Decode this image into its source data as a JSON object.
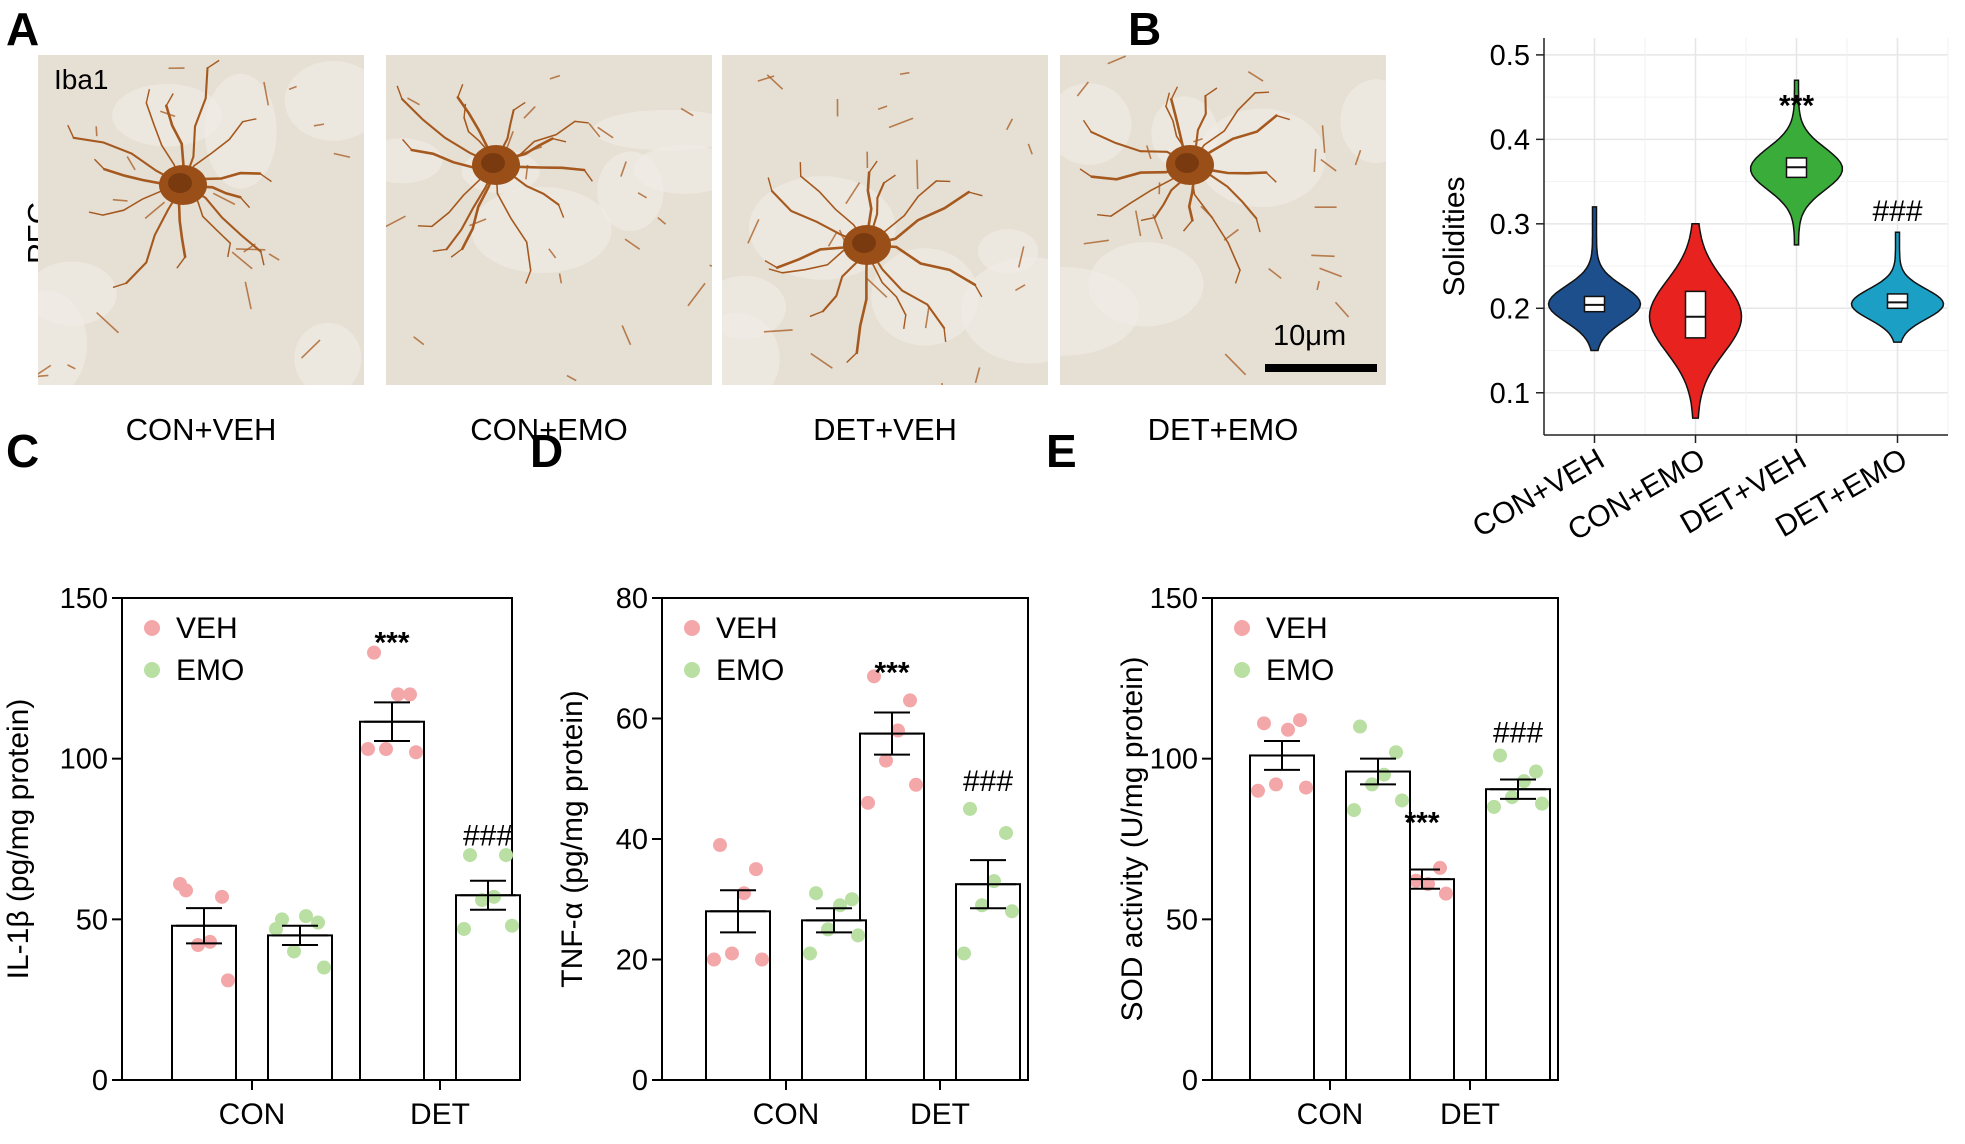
{
  "panels": {
    "A": "A",
    "B": "B",
    "C": "C",
    "D": "D",
    "E": "E"
  },
  "micrographs": {
    "marker": "Iba1",
    "region": "PFC",
    "scale_bar": "10μm",
    "labels": [
      "CON+VEH",
      "CON+EMO",
      "DET+VEH",
      "DET+EMO"
    ],
    "stain_color": "#a5591f",
    "background_color": "#e6dfd3"
  },
  "chart_data": [
    {
      "panel": "B",
      "type": "violin",
      "categories": [
        "CON+VEH",
        "CON+EMO",
        "DET+VEH",
        "DET+EMO"
      ],
      "ylabel": "Solidities",
      "ylim": [
        0.05,
        0.52
      ],
      "yticks": [
        0.1,
        0.2,
        0.3,
        0.4,
        0.5
      ],
      "grid": true,
      "colors": [
        "#1c4f8c",
        "#e8221f",
        "#3aac3a",
        "#1b9fc4"
      ],
      "violins": [
        {
          "min": 0.15,
          "max": 0.32,
          "q1": 0.196,
          "median": 0.204,
          "q3": 0.214,
          "mode": 0.205,
          "spread": 0.03
        },
        {
          "min": 0.07,
          "max": 0.3,
          "q1": 0.165,
          "median": 0.19,
          "q3": 0.22,
          "mode": 0.19,
          "spread": 0.06
        },
        {
          "min": 0.275,
          "max": 0.47,
          "q1": 0.355,
          "median": 0.367,
          "q3": 0.378,
          "mode": 0.365,
          "spread": 0.035
        },
        {
          "min": 0.16,
          "max": 0.29,
          "q1": 0.2,
          "median": 0.207,
          "q3": 0.217,
          "mode": 0.205,
          "spread": 0.025
        }
      ],
      "annotations": [
        {
          "category_index": 2,
          "y": 0.44,
          "text": "***"
        },
        {
          "category_index": 3,
          "y": 0.315,
          "text": "###"
        }
      ]
    },
    {
      "panel": "C",
      "type": "bar",
      "groups": [
        "CON",
        "DET"
      ],
      "ylabel": "IL-1β (pg/mg protein)",
      "ylim": [
        0,
        150
      ],
      "yticks": [
        0,
        50,
        100,
        150
      ],
      "legend_position": "top-left",
      "series": [
        {
          "name": "VEH",
          "color": "#f4a7a9",
          "means": [
            48,
            111.5
          ],
          "sem": [
            5.5,
            6
          ],
          "points": [
            [
              59,
              57,
              43,
              42,
              31,
              61
            ],
            [
              133,
              120,
              120,
              103,
              102,
              103
            ]
          ]
        },
        {
          "name": "EMO",
          "color": "#b9dfa3",
          "means": [
            45,
            57.5
          ],
          "sem": [
            3,
            4.5
          ],
          "points": [
            [
              50,
              49,
              51,
              40,
              35,
              47
            ],
            [
              70,
              70,
              57,
              56,
              48,
              47
            ]
          ]
        }
      ],
      "annotations": [
        {
          "group_index": 1,
          "series_index": 0,
          "y": 133,
          "text": "***"
        },
        {
          "group_index": 1,
          "series_index": 1,
          "y": 73,
          "text": "###"
        }
      ]
    },
    {
      "panel": "D",
      "type": "bar",
      "groups": [
        "CON",
        "DET"
      ],
      "ylabel": "TNF-α (pg/mg protein)",
      "ylim": [
        0,
        80
      ],
      "yticks": [
        0,
        20,
        40,
        60,
        80
      ],
      "legend_position": "top-left",
      "series": [
        {
          "name": "VEH",
          "color": "#f4a7a9",
          "means": [
            28,
            57.5
          ],
          "sem": [
            3.5,
            3.5
          ],
          "points": [
            [
              39,
              35,
              31,
              21,
              20,
              20
            ],
            [
              67,
              63,
              58,
              53,
              49,
              46
            ]
          ]
        },
        {
          "name": "EMO",
          "color": "#b9dfa3",
          "means": [
            26.5,
            32.5
          ],
          "sem": [
            2,
            4
          ],
          "points": [
            [
              31,
              30,
              29,
              25,
              24,
              21
            ],
            [
              45,
              41,
              33,
              29,
              28,
              21
            ]
          ]
        }
      ],
      "annotations": [
        {
          "group_index": 1,
          "series_index": 0,
          "y": 66,
          "text": "***"
        },
        {
          "group_index": 1,
          "series_index": 1,
          "y": 48,
          "text": "###"
        }
      ]
    },
    {
      "panel": "E",
      "type": "bar",
      "groups": [
        "CON",
        "DET"
      ],
      "ylabel": "SOD activity (U/mg protein)",
      "ylim": [
        0,
        150
      ],
      "yticks": [
        0,
        50,
        100,
        150
      ],
      "legend_position": "top-left",
      "series": [
        {
          "name": "VEH",
          "color": "#f4a7a9",
          "means": [
            101,
            62.5
          ],
          "sem": [
            4.5,
            3
          ],
          "points": [
            [
              111,
              112,
              109,
              92,
              91,
              90
            ],
            [
              71,
              66,
              61,
              62,
              58,
              54
            ]
          ]
        },
        {
          "name": "EMO",
          "color": "#b9dfa3",
          "means": [
            96,
            90.5
          ],
          "sem": [
            4,
            3
          ],
          "points": [
            [
              110,
              102,
              95,
              92,
              87,
              84
            ],
            [
              101,
              96,
              93,
              88,
              86,
              85
            ]
          ]
        }
      ],
      "annotations": [
        {
          "group_index": 1,
          "series_index": 0,
          "y": 77,
          "text": "***"
        },
        {
          "group_index": 1,
          "series_index": 1,
          "y": 105,
          "text": "###"
        }
      ]
    }
  ]
}
